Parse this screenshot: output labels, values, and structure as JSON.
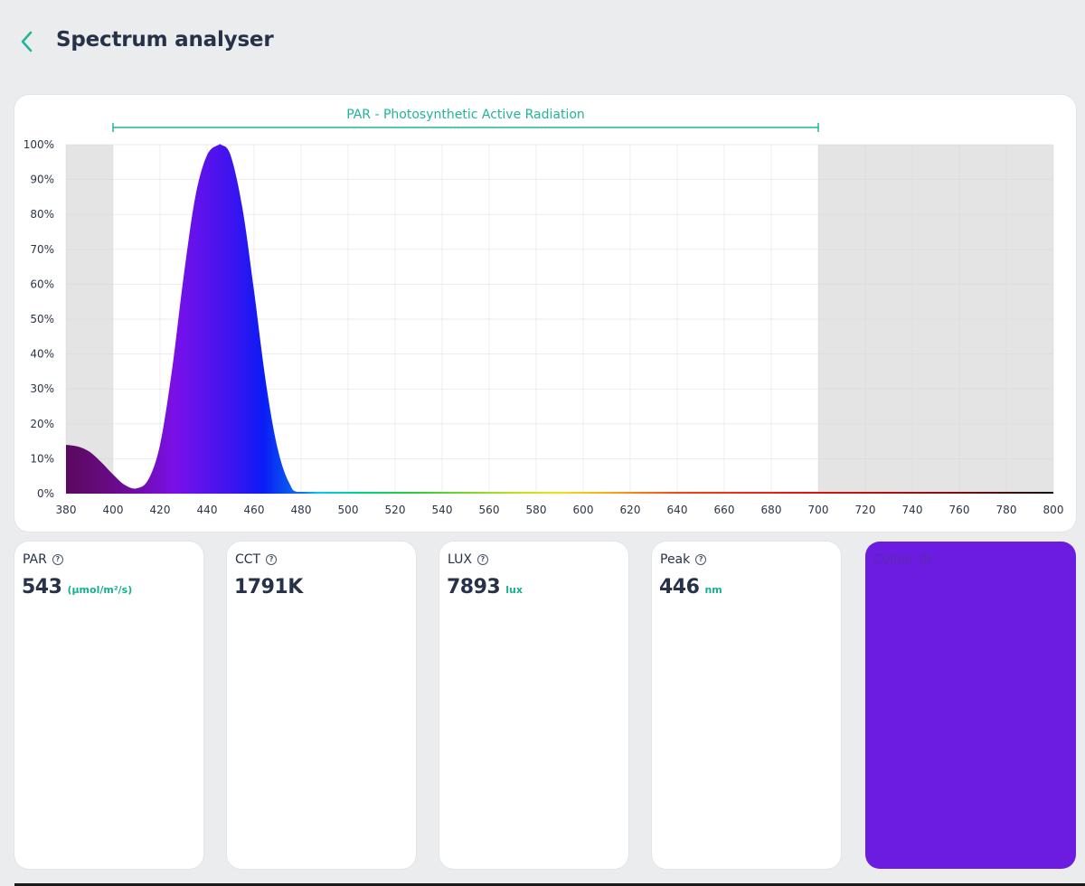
{
  "header": {
    "back_icon": "chevron-left-icon",
    "title": "Spectrum analyser"
  },
  "chart_data": {
    "type": "area",
    "title": "",
    "xlabel": "",
    "ylabel": "",
    "xlim": [
      380,
      800
    ],
    "ylim": [
      0,
      100
    ],
    "x_ticks": [
      "380",
      "400",
      "420",
      "440",
      "460",
      "480",
      "500",
      "520",
      "540",
      "560",
      "580",
      "600",
      "620",
      "640",
      "660",
      "680",
      "700",
      "720",
      "740",
      "760",
      "780",
      "800"
    ],
    "y_ticks": [
      "0%",
      "10%",
      "20%",
      "30%",
      "40%",
      "50%",
      "60%",
      "70%",
      "80%",
      "90%",
      "100%"
    ],
    "grid": true,
    "par_band": {
      "label": "PAR - Photosynthetic Active Radiation",
      "start": 400,
      "end": 700
    },
    "series": [
      {
        "x": [
          380,
          385,
          390,
          395,
          400,
          405,
          410,
          415,
          420,
          425,
          430,
          435,
          440,
          445,
          446,
          450,
          455,
          460,
          465,
          470,
          475,
          480,
          500,
          550,
          600,
          650,
          700,
          750,
          800
        ],
        "y": [
          14,
          13.5,
          12,
          9,
          5.5,
          2.5,
          1.5,
          4,
          14,
          35,
          62,
          85,
          97,
          100,
          100,
          97,
          82,
          58,
          32,
          13,
          3,
          0.3,
          0.2,
          0.2,
          0.3,
          0.4,
          0.5,
          0.4,
          0.3
        ]
      }
    ],
    "colors": {
      "par_bracket": "#20b597",
      "out_of_par_shade": "#e4e4e4"
    }
  },
  "stats": {
    "par": {
      "label": "PAR",
      "value": "543",
      "unit": "(µmol/m²/s)"
    },
    "cct": {
      "label": "CCT",
      "value": "1791K",
      "unit": ""
    },
    "lux": {
      "label": "LUX",
      "value": "7893",
      "unit": "lux"
    },
    "peak": {
      "label": "Peak",
      "value": "446",
      "unit": "nm"
    },
    "colour": {
      "label": "Colour",
      "swatch": "#6c1ce0"
    }
  },
  "icons": {
    "help": "help-circle-icon"
  }
}
